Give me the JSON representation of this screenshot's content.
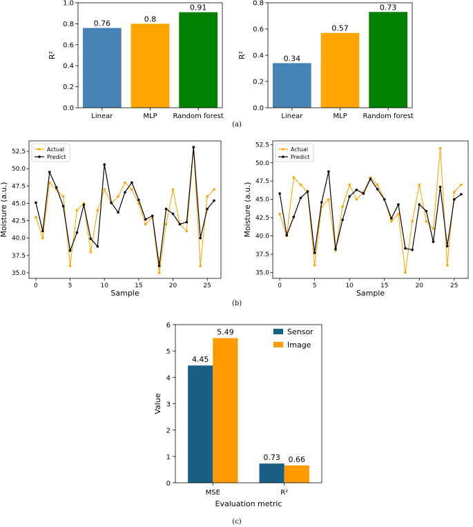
{
  "captions": {
    "a": "(a)",
    "b": "(b)",
    "c": "(c)"
  },
  "chart_data": [
    {
      "id": "a1",
      "type": "bar",
      "categories": [
        "Linear",
        "MLP",
        "Random forest"
      ],
      "values": [
        0.76,
        0.8,
        0.91
      ],
      "value_labels": [
        "0.76",
        "0.8",
        "0.91"
      ],
      "colors": [
        "#4682b4",
        "#ffa500",
        "#008000"
      ],
      "ylabel": "R²",
      "ylim": [
        0,
        1.0
      ],
      "yticks": [
        0.0,
        0.2,
        0.4,
        0.6,
        0.8,
        1.0
      ],
      "ytick_labels": [
        "0.0",
        "0.2",
        "0.4",
        "0.6",
        "0.8",
        "1.0"
      ]
    },
    {
      "id": "a2",
      "type": "bar",
      "categories": [
        "Linear",
        "MLP",
        "Random forest"
      ],
      "values": [
        0.34,
        0.57,
        0.73
      ],
      "value_labels": [
        "0.34",
        "0.57",
        "0.73"
      ],
      "colors": [
        "#4682b4",
        "#ffa500",
        "#008000"
      ],
      "ylabel": "R²",
      "ylim": [
        0,
        0.8
      ],
      "yticks": [
        0.0,
        0.2,
        0.4,
        0.6,
        0.8
      ],
      "ytick_labels": [
        "0.0",
        "0.2",
        "0.4",
        "0.6",
        "0.8"
      ]
    },
    {
      "id": "b1",
      "type": "line",
      "xlabel": "Sample",
      "ylabel": "Moisture (a.u.)",
      "xlim": [
        -1,
        27
      ],
      "ylim": [
        34.2,
        54.0
      ],
      "xticks": [
        0,
        5,
        10,
        15,
        20,
        25
      ],
      "xtick_labels": [
        "0",
        "5",
        "10",
        "15",
        "20",
        "25"
      ],
      "yticks": [
        35.0,
        37.5,
        40.0,
        42.5,
        45.0,
        47.5,
        50.0,
        52.5
      ],
      "ytick_labels": [
        "35.0",
        "37.5",
        "40.0",
        "42.5",
        "45.0",
        "47.5",
        "50.0",
        "52.5"
      ],
      "legend_position": "top-left",
      "series": [
        {
          "name": "Actual",
          "color": "#ffa500",
          "values": [
            43,
            40,
            48,
            47,
            46,
            36,
            44,
            45,
            38,
            44,
            47,
            45,
            46,
            48,
            47,
            45,
            42,
            43,
            35,
            42,
            47,
            42,
            41,
            53,
            36,
            46,
            47
          ]
        },
        {
          "name": "Predict",
          "color": "#000000",
          "values": [
            45.1,
            41.0,
            49.5,
            47.3,
            44.6,
            38.2,
            40.8,
            44.8,
            39.9,
            38.8,
            50.6,
            45.1,
            43.7,
            46.6,
            48.0,
            45.5,
            42.7,
            43.2,
            36.0,
            44.2,
            43.5,
            42.0,
            42.3,
            53.1,
            40.0,
            44.2,
            45.4
          ]
        }
      ]
    },
    {
      "id": "b2",
      "type": "line",
      "xlabel": "Sample",
      "ylabel": "Moisture (a.u.)",
      "xlim": [
        -1,
        27
      ],
      "ylim": [
        34.2,
        53.0
      ],
      "xticks": [
        0,
        5,
        10,
        15,
        20,
        25
      ],
      "xtick_labels": [
        "0",
        "5",
        "10",
        "15",
        "20",
        "25"
      ],
      "yticks": [
        35.0,
        37.5,
        40.0,
        42.5,
        45.0,
        47.5,
        50.0,
        52.5
      ],
      "ytick_labels": [
        "35.0",
        "37.5",
        "40.0",
        "42.5",
        "45.0",
        "47.5",
        "50.0",
        "52.5"
      ],
      "legend_position": "top-left",
      "series": [
        {
          "name": "Actual",
          "color": "#ffa500",
          "values": [
            43,
            40,
            48,
            47,
            46,
            36,
            44,
            45,
            38,
            44,
            47,
            45,
            46,
            48,
            47,
            45,
            42,
            43,
            35,
            42,
            47,
            42,
            41,
            52,
            36,
            46,
            47
          ]
        },
        {
          "name": "Predict",
          "color": "#000000",
          "values": [
            45.8,
            40.1,
            42.6,
            45.2,
            46.1,
            37.7,
            44.6,
            48.8,
            38.2,
            42.2,
            45.4,
            46.3,
            45.8,
            47.8,
            46.4,
            45.0,
            42.4,
            44.3,
            38.3,
            38.1,
            44.3,
            43.4,
            39.2,
            46.7,
            38.6,
            45.0,
            45.7
          ]
        }
      ]
    },
    {
      "id": "c",
      "type": "bar",
      "categories": [
        "MSE",
        "R²"
      ],
      "xlabel": "Evaluation metric",
      "ylabel": "Value",
      "ylim": [
        0,
        6
      ],
      "yticks": [
        0,
        1,
        2,
        3,
        4,
        5,
        6
      ],
      "ytick_labels": [
        "0",
        "1",
        "2",
        "3",
        "4",
        "5",
        "6"
      ],
      "legend_position": "top-right",
      "series": [
        {
          "name": "Sensor",
          "color": "#1a5f85",
          "values": [
            4.45,
            0.73
          ],
          "value_labels": [
            "4.45",
            "0.73"
          ]
        },
        {
          "name": "Image",
          "color": "#ff9a00",
          "values": [
            5.49,
            0.66
          ],
          "value_labels": [
            "5.49",
            "0.66"
          ]
        }
      ]
    }
  ]
}
